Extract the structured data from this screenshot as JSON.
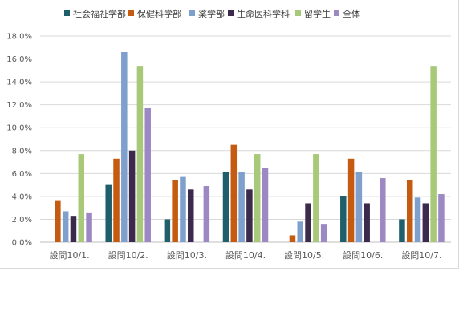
{
  "chart_data": {
    "type": "bar",
    "title": "",
    "xlabel": "",
    "ylabel": "",
    "categories": [
      "設問10/1.",
      "設問10/2.",
      "設問10/3.",
      "設問10/4.",
      "設問10/5.",
      "設問10/6.",
      "設問10/7."
    ],
    "y_ticks": [
      "0.0%",
      "2.0%",
      "4.0%",
      "6.0%",
      "8.0%",
      "10.0%",
      "12.0%",
      "14.0%",
      "16.0%",
      "18.0%"
    ],
    "ylim": [
      0,
      18
    ],
    "grid": true,
    "legend_position": "top",
    "series": [
      {
        "name": "社会福祉学部",
        "color": "#1f5f6b",
        "values": [
          0,
          5.0,
          2.0,
          6.1,
          0,
          4.0,
          2.0
        ]
      },
      {
        "name": "保健科学部",
        "color": "#c55a11",
        "values": [
          3.6,
          7.3,
          5.4,
          8.5,
          0.6,
          7.3,
          5.4
        ]
      },
      {
        "name": "薬学部",
        "color": "#7f9fcc",
        "values": [
          2.7,
          16.6,
          5.7,
          6.1,
          1.8,
          6.1,
          3.9
        ]
      },
      {
        "name": "生命医科学科",
        "color": "#3c2a4d",
        "values": [
          2.3,
          8.0,
          4.6,
          4.6,
          3.4,
          3.4,
          3.4
        ]
      },
      {
        "name": "留学生",
        "color": "#a9c97a",
        "values": [
          7.7,
          15.4,
          0,
          7.7,
          7.7,
          0,
          15.4
        ]
      },
      {
        "name": "全体",
        "color": "#9c88c2",
        "values": [
          2.6,
          11.7,
          4.9,
          6.5,
          1.6,
          5.6,
          4.2
        ]
      }
    ]
  }
}
